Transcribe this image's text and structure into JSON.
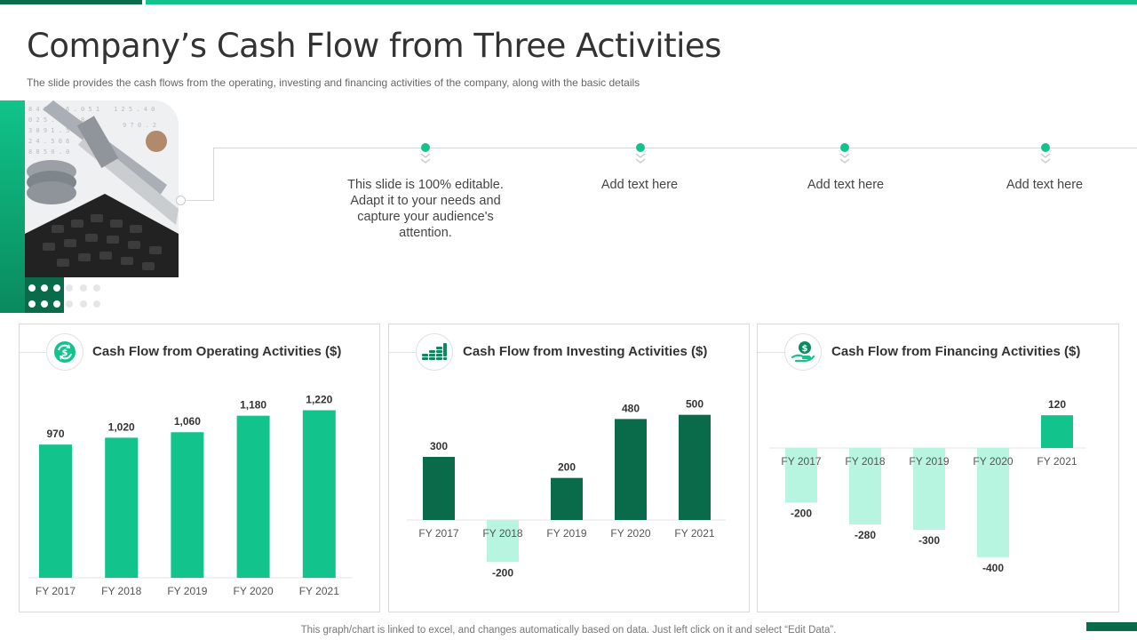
{
  "header": {
    "title": "Company’s Cash Flow from Three Activities",
    "subtitle": "The slide provides  the cash flows from the operating,  investing and financing activities of the company,  along with the basic details"
  },
  "timeline": {
    "items": [
      {
        "text": "This slide is 100% editable. Adapt it to your needs and capture your audience's attention."
      },
      {
        "text": "Add text here"
      },
      {
        "text": "Add text here"
      },
      {
        "text": "Add text here"
      }
    ]
  },
  "panels": [
    {
      "title": "Cash Flow from Operating Activities ($)",
      "icon": "cycle-dollar-icon"
    },
    {
      "title": "Cash Flow from Investing Activities ($)",
      "icon": "coin-stacks-icon"
    },
    {
      "title": "Cash Flow from Financing Activities ($)",
      "icon": "hand-dollar-icon"
    }
  ],
  "colors": {
    "accent": "#12c48b",
    "dark_green": "#0a6b4b",
    "mint": "#b7f5e0"
  },
  "chart_data": [
    {
      "type": "bar",
      "title": "Cash Flow from Operating Activities ($)",
      "categories": [
        "FY 2017",
        "FY 2018",
        "FY 2019",
        "FY 2020",
        "FY 2021"
      ],
      "values": [
        970,
        1020,
        1060,
        1180,
        1220
      ],
      "data_labels": [
        "970",
        "1,020",
        "1,060",
        "1,180",
        "1,220"
      ],
      "ylim": [
        0,
        1300
      ],
      "grid": false
    },
    {
      "type": "bar",
      "title": "Cash Flow from Investing Activities ($)",
      "categories": [
        "FY 2017",
        "FY 2018",
        "FY 2019",
        "FY 2020",
        "FY 2021"
      ],
      "values": [
        300,
        -200,
        200,
        480,
        500
      ],
      "data_labels": [
        "300",
        "-200",
        "200",
        "480",
        "500"
      ],
      "ylim": [
        -250,
        550
      ],
      "grid": false
    },
    {
      "type": "bar",
      "title": "Cash Flow from Financing Activities ($)",
      "categories": [
        "FY 2017",
        "FY 2018",
        "FY 2019",
        "FY 2020",
        "FY 2021"
      ],
      "values": [
        -200,
        -280,
        -300,
        -400,
        120
      ],
      "data_labels": [
        "-200",
        "-280",
        "-300",
        "-400",
        "120"
      ],
      "ylim": [
        -420,
        150
      ],
      "grid": false
    }
  ],
  "footer": {
    "note": "This graph/chart is linked to excel,  and changes automatically based on data. Just left click on it and select “Edit Data”."
  }
}
